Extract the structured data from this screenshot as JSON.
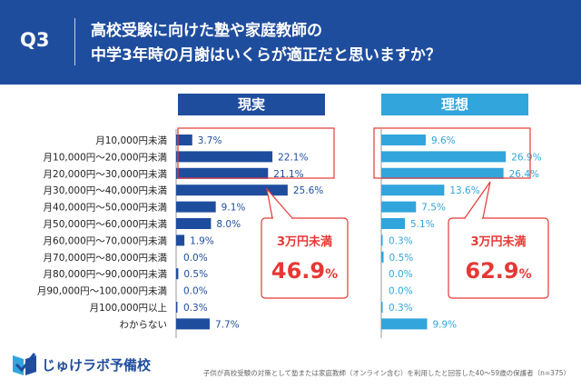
{
  "header": {
    "q_label": "Q3",
    "question_line1": "高校受験に向けた塾や家庭教師の",
    "question_line2": "中学3年時の月謝はいくらが適正だと思いますか？"
  },
  "footnote": "子供が高校受験の対策として塾または家庭教師（オンライン含む）を利用したと回答した40～59歳の保護者（n=375）",
  "logo": {
    "text": "じゅけラボ予備校",
    "icon": "book-logo-icon"
  },
  "colors": {
    "header_bg": "#1f4d9e",
    "reality": "#1f4d9e",
    "ideal": "#31a5dc",
    "callout": "#e53935"
  },
  "chart_data": {
    "type": "bar",
    "orientation": "horizontal",
    "categories": [
      "月10,000円未満",
      "月10,000円～20,000円未満",
      "月20,000円～30,000円未満",
      "月30,000円～40,000円未満",
      "月40,000円～50,000円未満",
      "月50,000円～60,000円未満",
      "月60,000円～70,000円未満",
      "月70,000円～80,000円未満",
      "月80,000円～90,000円未満",
      "月90,000円～100,000円未満",
      "月100,000円以上",
      "わからない"
    ],
    "series": [
      {
        "name": "現実",
        "color": "#1f4d9e",
        "values": [
          3.7,
          22.1,
          21.1,
          25.6,
          9.1,
          8.0,
          1.9,
          0.0,
          0.5,
          0.0,
          0.3,
          7.7
        ]
      },
      {
        "name": "理想",
        "color": "#31a5dc",
        "values": [
          9.6,
          26.9,
          26.4,
          13.6,
          7.5,
          5.1,
          0.3,
          0.5,
          0.0,
          0.0,
          0.3,
          9.9
        ]
      }
    ],
    "value_suffix": "%",
    "callouts": [
      {
        "series": "現実",
        "label": "3万円未満",
        "value_number": "46.9",
        "value_unit": "%"
      },
      {
        "series": "理想",
        "label": "3万円未満",
        "value_number": "62.9",
        "value_unit": "%"
      }
    ]
  }
}
